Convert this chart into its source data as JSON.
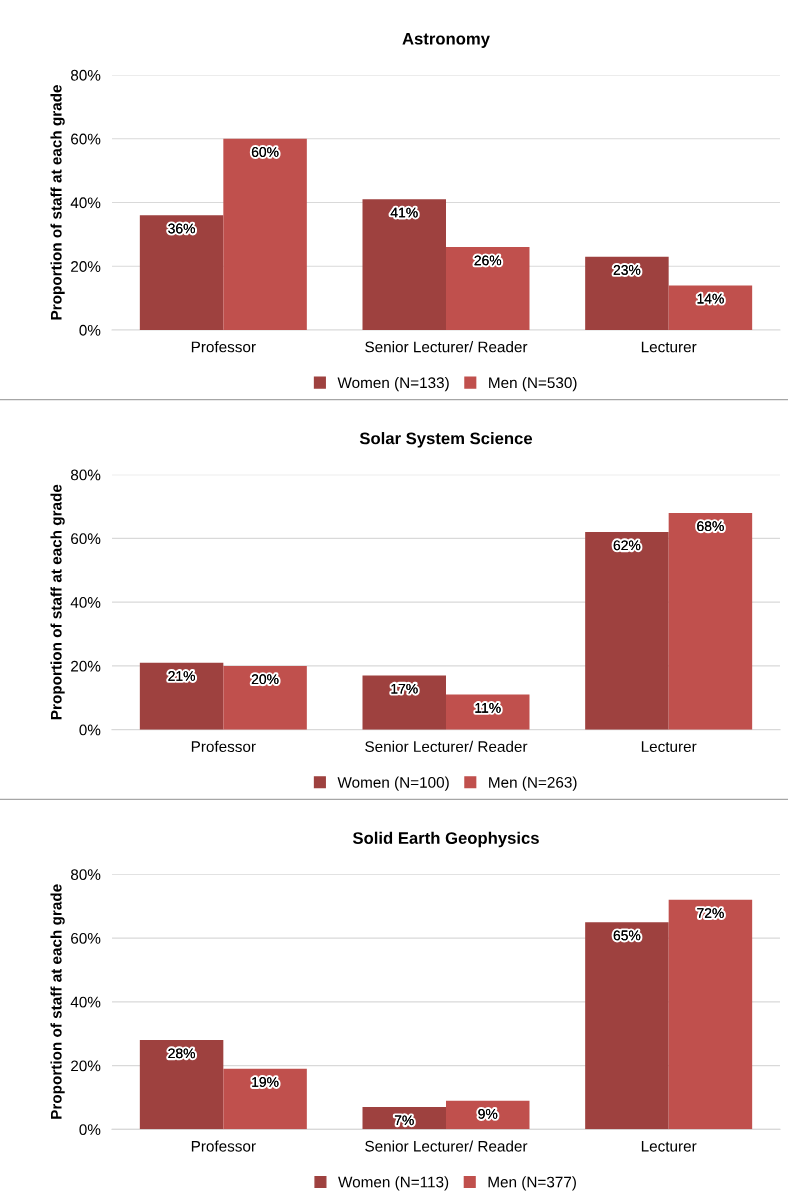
{
  "chart_data": [
    {
      "type": "bar",
      "title": "Astronomy",
      "ylabel": "Proportion of staff at each grade",
      "categories": [
        "Professor",
        "Senior Lecturer/ Reader",
        "Lecturer"
      ],
      "series": [
        {
          "name": "Women (N=133)",
          "color": "#9e413f",
          "values": [
            36,
            41,
            23
          ],
          "value_labels": [
            "36%",
            "41%",
            "23%"
          ]
        },
        {
          "name": "Men (N=530)",
          "color": "#c0504d",
          "values": [
            60,
            26,
            14
          ],
          "value_labels": [
            "60%",
            "26%",
            "14%"
          ]
        }
      ],
      "ylim": [
        0,
        80
      ],
      "yticks": [
        {
          "value": 0,
          "label": "0%"
        },
        {
          "value": 20,
          "label": "20%"
        },
        {
          "value": 40,
          "label": "40%"
        },
        {
          "value": 60,
          "label": "60%"
        },
        {
          "value": 80,
          "label": "80%"
        }
      ],
      "grid": "y",
      "legend": "bottom"
    },
    {
      "type": "bar",
      "title": "Solar System Science",
      "ylabel": "Proportion of staff at each grade",
      "categories": [
        "Professor",
        "Senior Lecturer/ Reader",
        "Lecturer"
      ],
      "series": [
        {
          "name": "Women (N=100)",
          "color": "#9e413f",
          "values": [
            21,
            17,
            62
          ],
          "value_labels": [
            "21%",
            "17%",
            "62%"
          ]
        },
        {
          "name": "Men (N=263)",
          "color": "#c0504d",
          "values": [
            20,
            11,
            68
          ],
          "value_labels": [
            "20%",
            "11%",
            "68%"
          ]
        }
      ],
      "ylim": [
        0,
        80
      ],
      "yticks": [
        {
          "value": 0,
          "label": "0%"
        },
        {
          "value": 20,
          "label": "20%"
        },
        {
          "value": 40,
          "label": "40%"
        },
        {
          "value": 60,
          "label": "60%"
        },
        {
          "value": 80,
          "label": "80%"
        }
      ],
      "grid": "y",
      "legend": "bottom"
    },
    {
      "type": "bar",
      "title": "Solid Earth Geophysics",
      "ylabel": "Proportion of staff at each grade",
      "categories": [
        "Professor",
        "Senior Lecturer/ Reader",
        "Lecturer"
      ],
      "series": [
        {
          "name": "Women (N=113)",
          "color": "#9e413f",
          "values": [
            28,
            7,
            65
          ],
          "value_labels": [
            "28%",
            "7%",
            "65%"
          ]
        },
        {
          "name": "Men (N=377)",
          "color": "#c0504d",
          "values": [
            19,
            9,
            72
          ],
          "value_labels": [
            "19%",
            "9%",
            "72%"
          ]
        }
      ],
      "ylim": [
        0,
        80
      ],
      "yticks": [
        {
          "value": 0,
          "label": "0%"
        },
        {
          "value": 20,
          "label": "20%"
        },
        {
          "value": 40,
          "label": "40%"
        },
        {
          "value": 60,
          "label": "60%"
        },
        {
          "value": 80,
          "label": "80%"
        }
      ],
      "grid": "y",
      "legend": "bottom"
    }
  ]
}
